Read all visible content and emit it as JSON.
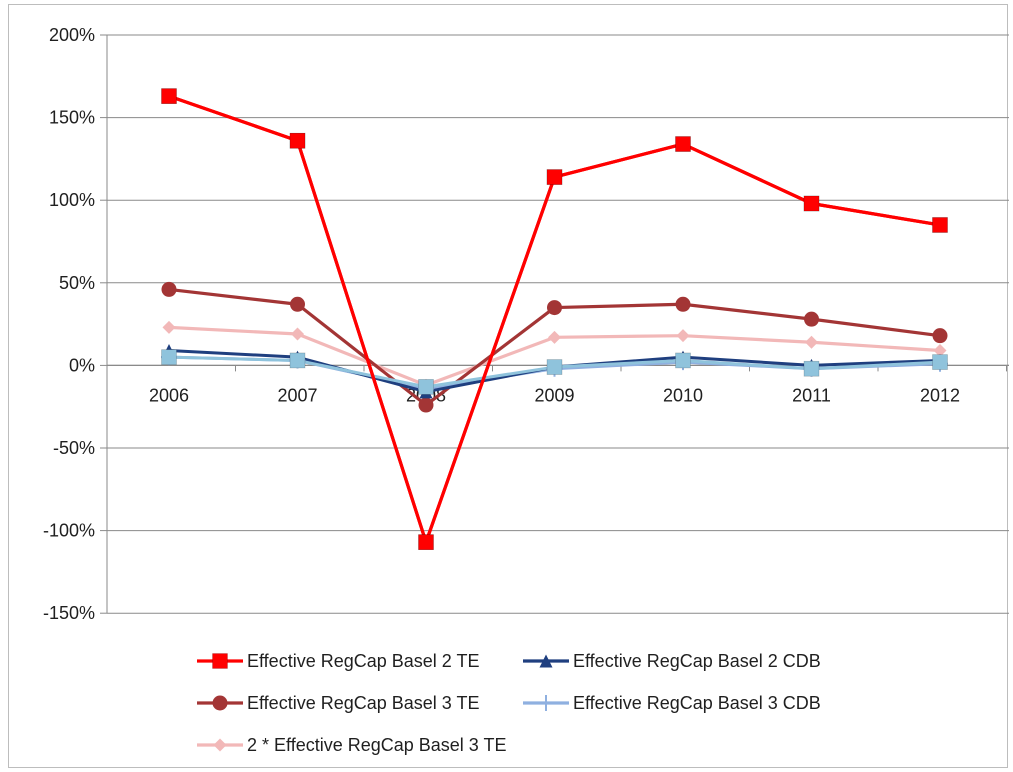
{
  "chart_data": {
    "type": "line",
    "title": "",
    "xlabel": "",
    "ylabel": "",
    "categories": [
      "2006",
      "2007",
      "2008",
      "2009",
      "2010",
      "2011",
      "2012"
    ],
    "y_ticks": [
      "200%",
      "150%",
      "100%",
      "50%",
      "0%",
      "-50%",
      "-100%",
      "-150%"
    ],
    "y_tick_values": [
      200,
      150,
      100,
      50,
      0,
      -50,
      -100,
      -150
    ],
    "ylim": [
      -150,
      200
    ],
    "grid": true,
    "legend_position": "bottom",
    "series": [
      {
        "name": "Effective RegCap Basel 2 TE",
        "color": "#ff0000",
        "marker": "square",
        "values": [
          163,
          136,
          -107,
          114,
          134,
          98,
          85
        ]
      },
      {
        "name": "Effective RegCap Basel 2 CDB",
        "color": "#1f3f7f",
        "marker": "triangle",
        "values": [
          9,
          5,
          -16,
          -1,
          5,
          0,
          3
        ]
      },
      {
        "name": "Effective RegCap Basel 3 TE",
        "color": "#a33535",
        "marker": "circle",
        "values": [
          46,
          37,
          -24,
          35,
          37,
          28,
          18
        ]
      },
      {
        "name": "Effective RegCap Basel 3 CDB",
        "color": "#8fb0e0",
        "marker": "plus",
        "values": [
          5,
          3,
          -14,
          -2,
          2,
          -2,
          1
        ]
      },
      {
        "name": "2 * Effective RegCap Basel 3 TE",
        "color": "#f2b8b8",
        "marker": "diamond",
        "values": [
          23,
          19,
          -12,
          17,
          18,
          14,
          9
        ]
      }
    ],
    "overlay_series": {
      "color": "#8fc3dc",
      "marker": "square",
      "values": [
        5,
        3,
        -13,
        -1,
        3,
        -2,
        2
      ]
    }
  }
}
